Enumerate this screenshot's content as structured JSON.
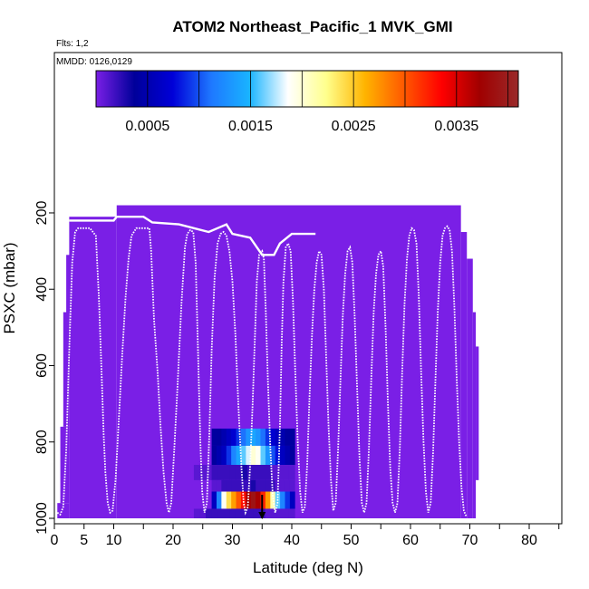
{
  "chart_data": {
    "type": "heatmap",
    "title": "ATOM2 Northeast_Pacific_1 MVK_GMI",
    "notes": [
      "Flts: 1,2",
      "MMDD: 0126,0129"
    ],
    "xlabel": "Latitude (deg N)",
    "ylabel": "PSXC (mbar)",
    "xlim": [
      0,
      85
    ],
    "ylim": [
      1000,
      0
    ],
    "x_ticks": [
      0,
      5,
      10,
      20,
      30,
      40,
      50,
      60,
      70,
      80
    ],
    "x_tick_labels": [
      "0",
      "5",
      "10",
      "20",
      "30",
      "40",
      "50",
      "60",
      "70",
      "80"
    ],
    "x_minor_ticks": [
      15,
      25,
      35,
      45,
      55,
      65,
      75,
      85
    ],
    "y_ticks": [
      200,
      400,
      600,
      800,
      1000
    ],
    "y_tick_labels": [
      "200",
      "400",
      "600",
      "800",
      "1000"
    ],
    "colorbar": {
      "range": [
        0,
        0.0041
      ],
      "ticks": [
        0.0005,
        0.0015,
        0.0025,
        0.0035
      ],
      "tick_labels": [
        "0.0005",
        "0.0015",
        "0.0025",
        "0.0035"
      ],
      "colors": [
        "#7a1fe6",
        "#00009a",
        "#0000d8",
        "#1e78ff",
        "#19b4ff",
        "#ffffff",
        "#ffff8c",
        "#ffb400",
        "#ff5a00",
        "#ff0000",
        "#a00000",
        "#9a2a2a"
      ]
    },
    "background_value": 0.0,
    "coverage": [
      {
        "lat": [
          0.5,
          2.5
        ],
        "p": [
          960,
          1000
        ]
      },
      {
        "lat": [
          1.0,
          2.5
        ],
        "p": [
          760,
          960
        ]
      },
      {
        "lat": [
          1.5,
          2.5
        ],
        "p": [
          460,
          760
        ]
      },
      {
        "lat": [
          2.0,
          3.0
        ],
        "p": [
          310,
          460
        ]
      },
      {
        "lat": [
          2.5,
          10.5
        ],
        "p": [
          210,
          1000
        ]
      },
      {
        "lat": [
          10.5,
          68.5
        ],
        "p": [
          180,
          1000
        ]
      },
      {
        "lat": [
          68.5,
          69.5
        ],
        "p": [
          250,
          1000
        ]
      },
      {
        "lat": [
          69.5,
          70.5
        ],
        "p": [
          320,
          1000
        ]
      },
      {
        "lat": [
          70.5,
          71.0
        ],
        "p": [
          460,
          1000
        ]
      },
      {
        "lat": [
          71.0,
          71.5
        ],
        "p": [
          550,
          900
        ]
      }
    ],
    "mvk_cells": [
      {
        "lat": [
          26.5,
          40.5
        ],
        "p": [
          765,
          810
        ],
        "values": [
          0.0004,
          0.0004,
          0.0005,
          0.0006,
          0.0007,
          0.0009,
          0.0011,
          0.0013,
          0.0014,
          0.0013,
          0.0011,
          0.0009,
          0.0007,
          0.0006,
          0.0005,
          0.0004,
          0.0004
        ]
      },
      {
        "lat": [
          26.5,
          40.5
        ],
        "p": [
          810,
          860
        ],
        "values": [
          0.0004,
          0.0005,
          0.0006,
          0.0009,
          0.0012,
          0.0014,
          0.0016,
          0.0018,
          0.002,
          0.0019,
          0.0016,
          0.0013,
          0.001,
          0.0008,
          0.0006,
          0.0005,
          0.0004
        ]
      },
      {
        "lat": [
          23.5,
          40.5
        ],
        "p": [
          860,
          900
        ],
        "values": [
          0.0001,
          0.0001,
          0.0001,
          0.0002,
          0.0002,
          0.0002,
          0.0002,
          0.0002,
          0.0003,
          0.0002,
          0.0002,
          0.0002,
          0.0002,
          0.0001,
          0.0001,
          0.0001,
          0.0001
        ]
      },
      {
        "lat": [
          26.5,
          40.5
        ],
        "p": [
          900,
          930
        ],
        "values": [
          0.0001,
          0.0001,
          0.0002,
          0.0002,
          0.0002,
          0.0002,
          0.0002,
          0.0002,
          0.0003,
          0.0002,
          0.0002,
          0.0002,
          0.0002,
          0.0001,
          0.0001,
          0.0001,
          0.0001
        ]
      },
      {
        "lat": [
          26.5,
          40.5
        ],
        "p": [
          930,
          975
        ],
        "values": [
          0.0006,
          0.0012,
          0.0019,
          0.0024,
          0.0027,
          0.003,
          0.0033,
          0.0037,
          0.0039,
          0.0037,
          0.0032,
          0.0027,
          0.0021,
          0.0016,
          0.0012,
          0.0009,
          0.0006
        ]
      },
      {
        "lat": [
          23.5,
          40.5
        ],
        "p": [
          975,
          1000
        ],
        "values": [
          0.0001,
          0.0001,
          0.0002,
          0.0002,
          0.0002,
          0.0002,
          0.0002,
          0.0002,
          0.0002,
          0.0002,
          0.0002,
          0.0002,
          0.0001,
          0.0001,
          0.0001,
          0.0001,
          0.0001
        ]
      }
    ],
    "flight_track": [
      [
        0.5,
        985
      ],
      [
        1.0,
        990
      ],
      [
        1.5,
        970
      ],
      [
        2.0,
        820
      ],
      [
        2.5,
        560
      ],
      [
        3.0,
        330
      ],
      [
        3.5,
        250
      ],
      [
        4.0,
        240
      ],
      [
        6.0,
        240
      ],
      [
        7.0,
        260
      ],
      [
        7.5,
        420
      ],
      [
        8.0,
        640
      ],
      [
        8.3,
        780
      ],
      [
        8.6,
        880
      ],
      [
        9.0,
        960
      ],
      [
        9.4,
        985
      ],
      [
        9.8,
        980
      ],
      [
        10.3,
        900
      ],
      [
        10.8,
        760
      ],
      [
        11.4,
        580
      ],
      [
        12.0,
        420
      ],
      [
        12.5,
        320
      ],
      [
        13.0,
        260
      ],
      [
        13.8,
        240
      ],
      [
        16.0,
        240
      ],
      [
        16.3,
        300
      ],
      [
        16.8,
        480
      ],
      [
        17.4,
        620
      ],
      [
        17.9,
        760
      ],
      [
        18.4,
        880
      ],
      [
        18.9,
        960
      ],
      [
        19.3,
        985
      ],
      [
        19.7,
        960
      ],
      [
        20.2,
        820
      ],
      [
        20.8,
        640
      ],
      [
        21.4,
        440
      ],
      [
        22.0,
        290
      ],
      [
        22.4,
        255
      ],
      [
        22.9,
        245
      ],
      [
        23.4,
        250
      ],
      [
        23.8,
        330
      ],
      [
        24.2,
        560
      ],
      [
        24.6,
        800
      ],
      [
        24.9,
        930
      ],
      [
        25.3,
        985
      ],
      [
        25.7,
        960
      ],
      [
        26.1,
        780
      ],
      [
        26.5,
        560
      ],
      [
        27.0,
        370
      ],
      [
        27.5,
        280
      ],
      [
        28.0,
        255
      ],
      [
        28.5,
        250
      ],
      [
        29.0,
        260
      ],
      [
        29.5,
        300
      ],
      [
        30.0,
        380
      ],
      [
        30.5,
        520
      ],
      [
        31.0,
        700
      ],
      [
        31.5,
        860
      ],
      [
        31.9,
        960
      ],
      [
        32.2,
        985
      ],
      [
        32.6,
        970
      ],
      [
        33.0,
        860
      ],
      [
        33.4,
        700
      ],
      [
        33.8,
        520
      ],
      [
        34.1,
        380
      ],
      [
        34.5,
        310
      ],
      [
        35.0,
        300
      ],
      [
        35.3,
        320
      ],
      [
        35.6,
        450
      ],
      [
        36.0,
        650
      ],
      [
        36.4,
        820
      ],
      [
        36.8,
        940
      ],
      [
        37.2,
        985
      ],
      [
        37.6,
        960
      ],
      [
        38.0,
        760
      ],
      [
        38.3,
        540
      ],
      [
        38.6,
        380
      ],
      [
        39.0,
        290
      ],
      [
        39.4,
        280
      ],
      [
        39.8,
        300
      ],
      [
        40.2,
        430
      ],
      [
        40.6,
        620
      ],
      [
        41.0,
        800
      ],
      [
        41.4,
        930
      ],
      [
        41.8,
        985
      ],
      [
        42.2,
        970
      ],
      [
        42.6,
        860
      ],
      [
        43.0,
        680
      ],
      [
        43.4,
        520
      ],
      [
        43.8,
        400
      ],
      [
        44.2,
        330
      ],
      [
        44.6,
        300
      ],
      [
        45.0,
        310
      ],
      [
        45.4,
        400
      ],
      [
        45.8,
        580
      ],
      [
        46.2,
        760
      ],
      [
        46.6,
        900
      ],
      [
        47.0,
        980
      ],
      [
        47.4,
        960
      ],
      [
        47.8,
        820
      ],
      [
        48.2,
        640
      ],
      [
        48.6,
        470
      ],
      [
        49.0,
        360
      ],
      [
        49.4,
        300
      ],
      [
        49.8,
        290
      ],
      [
        50.2,
        330
      ],
      [
        50.6,
        470
      ],
      [
        51.0,
        660
      ],
      [
        51.4,
        840
      ],
      [
        51.8,
        960
      ],
      [
        52.2,
        985
      ],
      [
        52.6,
        960
      ],
      [
        53.0,
        820
      ],
      [
        53.4,
        630
      ],
      [
        53.8,
        460
      ],
      [
        54.2,
        360
      ],
      [
        54.6,
        310
      ],
      [
        55.0,
        300
      ],
      [
        55.4,
        340
      ],
      [
        55.8,
        500
      ],
      [
        56.2,
        700
      ],
      [
        56.6,
        870
      ],
      [
        57.0,
        960
      ],
      [
        57.4,
        985
      ],
      [
        57.8,
        960
      ],
      [
        58.2,
        820
      ],
      [
        58.6,
        620
      ],
      [
        59.0,
        440
      ],
      [
        59.4,
        320
      ],
      [
        59.8,
        260
      ],
      [
        60.2,
        240
      ],
      [
        60.6,
        245
      ],
      [
        61.0,
        280
      ],
      [
        61.4,
        420
      ],
      [
        61.8,
        620
      ],
      [
        62.2,
        800
      ],
      [
        62.6,
        930
      ],
      [
        63.0,
        985
      ],
      [
        63.4,
        960
      ],
      [
        63.8,
        830
      ],
      [
        64.2,
        640
      ],
      [
        64.6,
        460
      ],
      [
        65.0,
        330
      ],
      [
        65.4,
        260
      ],
      [
        65.8,
        240
      ],
      [
        66.2,
        235
      ],
      [
        66.6,
        245
      ],
      [
        67.0,
        300
      ],
      [
        67.4,
        450
      ],
      [
        67.8,
        640
      ],
      [
        68.2,
        800
      ],
      [
        68.6,
        920
      ],
      [
        69.0,
        980
      ],
      [
        69.4,
        995
      ]
    ],
    "secondary_track": [
      [
        2.5,
        220
      ],
      [
        10.0,
        220
      ],
      [
        10.5,
        210
      ],
      [
        15.0,
        210
      ],
      [
        16.5,
        225
      ],
      [
        21.0,
        230
      ],
      [
        26.0,
        250
      ],
      [
        27.5,
        240
      ],
      [
        29.0,
        230
      ],
      [
        30.0,
        255
      ],
      [
        33.0,
        265
      ],
      [
        35.0,
        310
      ],
      [
        37.0,
        310
      ],
      [
        38.0,
        280
      ],
      [
        40.0,
        255
      ],
      [
        44.0,
        255
      ]
    ],
    "marker": {
      "lat": 35.0,
      "p": 1000
    }
  }
}
